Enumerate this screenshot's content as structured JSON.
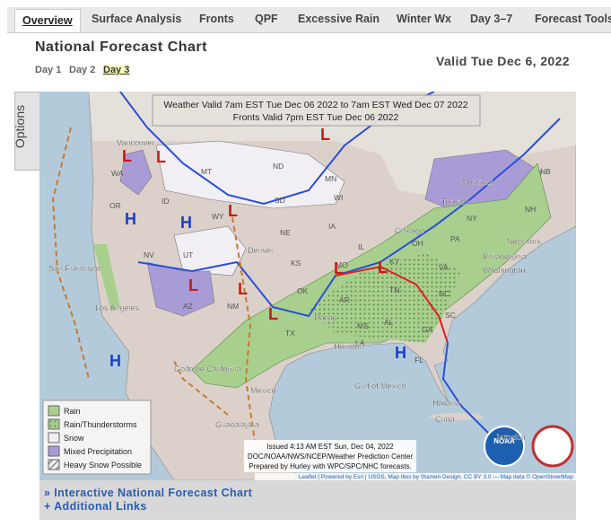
{
  "tabs": [
    "Overview",
    "Surface Analysis",
    "Fronts",
    "QPF",
    "Excessive Rain",
    "Winter Wx",
    "Day 3–7",
    "Forecast Tools"
  ],
  "header": {
    "title": "National Forecast Chart",
    "valid": "Valid Tue Dec 6, 2022",
    "days": [
      "Day 1",
      "Day 2",
      "Day 3"
    ]
  },
  "options": "Options",
  "map": {
    "banner": [
      "Weather Valid 7am EST Tue Dec 06 2022 to 7am EST Wed Dec 07 2022",
      "Fronts Valid 7pm EST Tue Dec 06 2022"
    ],
    "legend": [
      "Rain",
      "Rain/Thunderstorms",
      "Snow",
      "Mixed Precipitation",
      "Heavy Snow Possible"
    ],
    "issued": [
      "Issued 4:13 AM EST Sun, Dec 04, 2022",
      "DOC/NOAA/NWS/NCEP/Weather Prediction Center",
      "Prepared by Hurley with WPC/SPC/NHC forecasts."
    ],
    "attribution": "Leaflet | Powered by Esri | USGS, Map tiles by Stamen Design, CC BY 3.0 — Map data © OpenStreetMap",
    "logo": "NOAA",
    "places": [
      "Vancouver",
      "WA",
      "OR",
      "ID",
      "MT",
      "ND",
      "MN",
      "WI",
      "SD",
      "WY",
      "NE",
      "IA",
      "IL",
      "Chicago",
      "OH",
      "PA",
      "NY",
      "Toronto",
      "Montreal",
      "NB",
      "NH",
      "New York",
      "Philadelphia",
      "Washington",
      "NV",
      "UT",
      "Denver",
      "KS",
      "MO",
      "KY",
      "VA",
      "San Francisco",
      "Los Angeles",
      "AZ",
      "NM",
      "OK",
      "AR",
      "TN",
      "NC",
      "SC",
      "GA",
      "AL",
      "MS",
      "Dallas",
      "TX",
      "LA",
      "Houston",
      "FL",
      "Gulf of Mexico",
      "Golfo de California",
      "Mexico",
      "Guadalajara",
      "Havana",
      "Cuba",
      "Jamaica"
    ],
    "pressure_centers": [
      "L",
      "L",
      "L",
      "L",
      "L",
      "L",
      "L",
      "L",
      "L",
      "H",
      "H",
      "H",
      "H"
    ]
  },
  "links": [
    "» Interactive National Forecast Chart",
    "+ Additional Links"
  ]
}
